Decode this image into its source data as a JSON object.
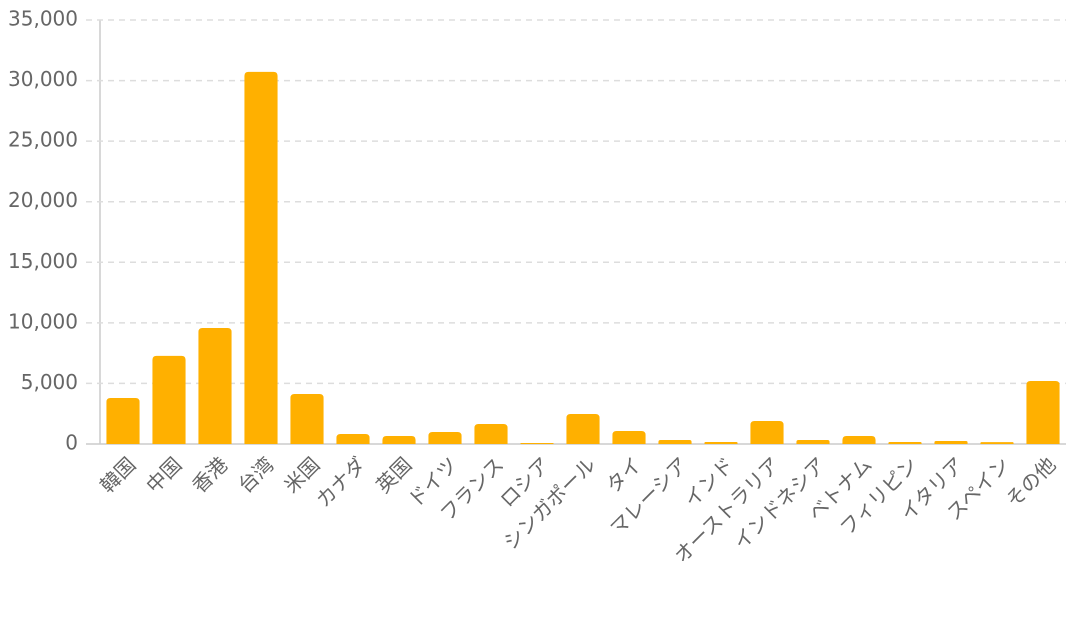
{
  "chart_data": {
    "type": "bar",
    "categories": [
      "韓国",
      "中国",
      "香港",
      "台湾",
      "米国",
      "カナダ",
      "英国",
      "ドイツ",
      "フランス",
      "ロシア",
      "シンガポール",
      "タイ",
      "マレーシア",
      "インド",
      "オーストラリア",
      "インドネシア",
      "ベトナム",
      "フィリピン",
      "イタリア",
      "スペイン",
      "その他"
    ],
    "values": [
      3800,
      7270,
      9580,
      30720,
      4130,
      830,
      660,
      990,
      1650,
      80,
      2480,
      1070,
      330,
      170,
      1900,
      330,
      660,
      170,
      250,
      150,
      5200
    ],
    "color": "#ffb000",
    "ylim": [
      0,
      35000
    ],
    "yticks": [
      0,
      {
        "value": 5000,
        "label": "5,000"
      },
      {
        "value": 10000,
        "label": "10,000"
      },
      {
        "value": 15000,
        "label": "15,000"
      },
      {
        "value": 20000,
        "label": "20,000"
      },
      {
        "value": 25000,
        "label": "25,000"
      },
      {
        "value": 30000,
        "label": "30,000"
      },
      {
        "value": 35000,
        "label": "35,000"
      }
    ],
    "grid": true
  }
}
